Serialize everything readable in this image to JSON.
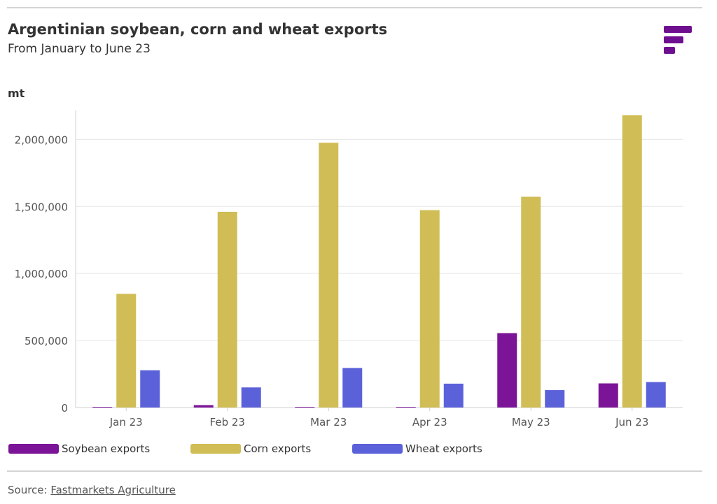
{
  "header": {
    "title": "Argentinian soybean, corn and wheat exports",
    "subtitle": "From January to June 23"
  },
  "logo": {
    "icon": "fastmarkets-logo-icon",
    "color": "#6e0f8f"
  },
  "footer": {
    "source_prefix": "Source: ",
    "source_link": "Fastmarkets Agriculture"
  },
  "chart_data": {
    "type": "bar",
    "title": "Argentinian soybean, corn and wheat exports",
    "subtitle": "From January to June 23",
    "ylabel": "mt",
    "xlabel": "",
    "categories": [
      "Jan 23",
      "Feb 23",
      "Mar 23",
      "Apr 23",
      "May 23",
      "Jun 23"
    ],
    "ylim": [
      0,
      2200000
    ],
    "yticks": [
      0,
      500000,
      1000000,
      1500000,
      2000000
    ],
    "ytick_labels": [
      "0",
      "500,000",
      "1,000,000",
      "1,500,000",
      "2,000,000"
    ],
    "grid": true,
    "legend_position": "bottom-left",
    "series": [
      {
        "name": "Soybean exports",
        "color": "#7b1497",
        "values": [
          2000,
          18000,
          5000,
          5000,
          555000,
          180000
        ]
      },
      {
        "name": "Corn exports",
        "color": "#d0bd55",
        "values": [
          848000,
          1460000,
          1975000,
          1472000,
          1572000,
          2180000
        ]
      },
      {
        "name": "Wheat exports",
        "color": "#5b61d9",
        "values": [
          278000,
          150000,
          295000,
          178000,
          130000,
          190000
        ]
      }
    ]
  }
}
